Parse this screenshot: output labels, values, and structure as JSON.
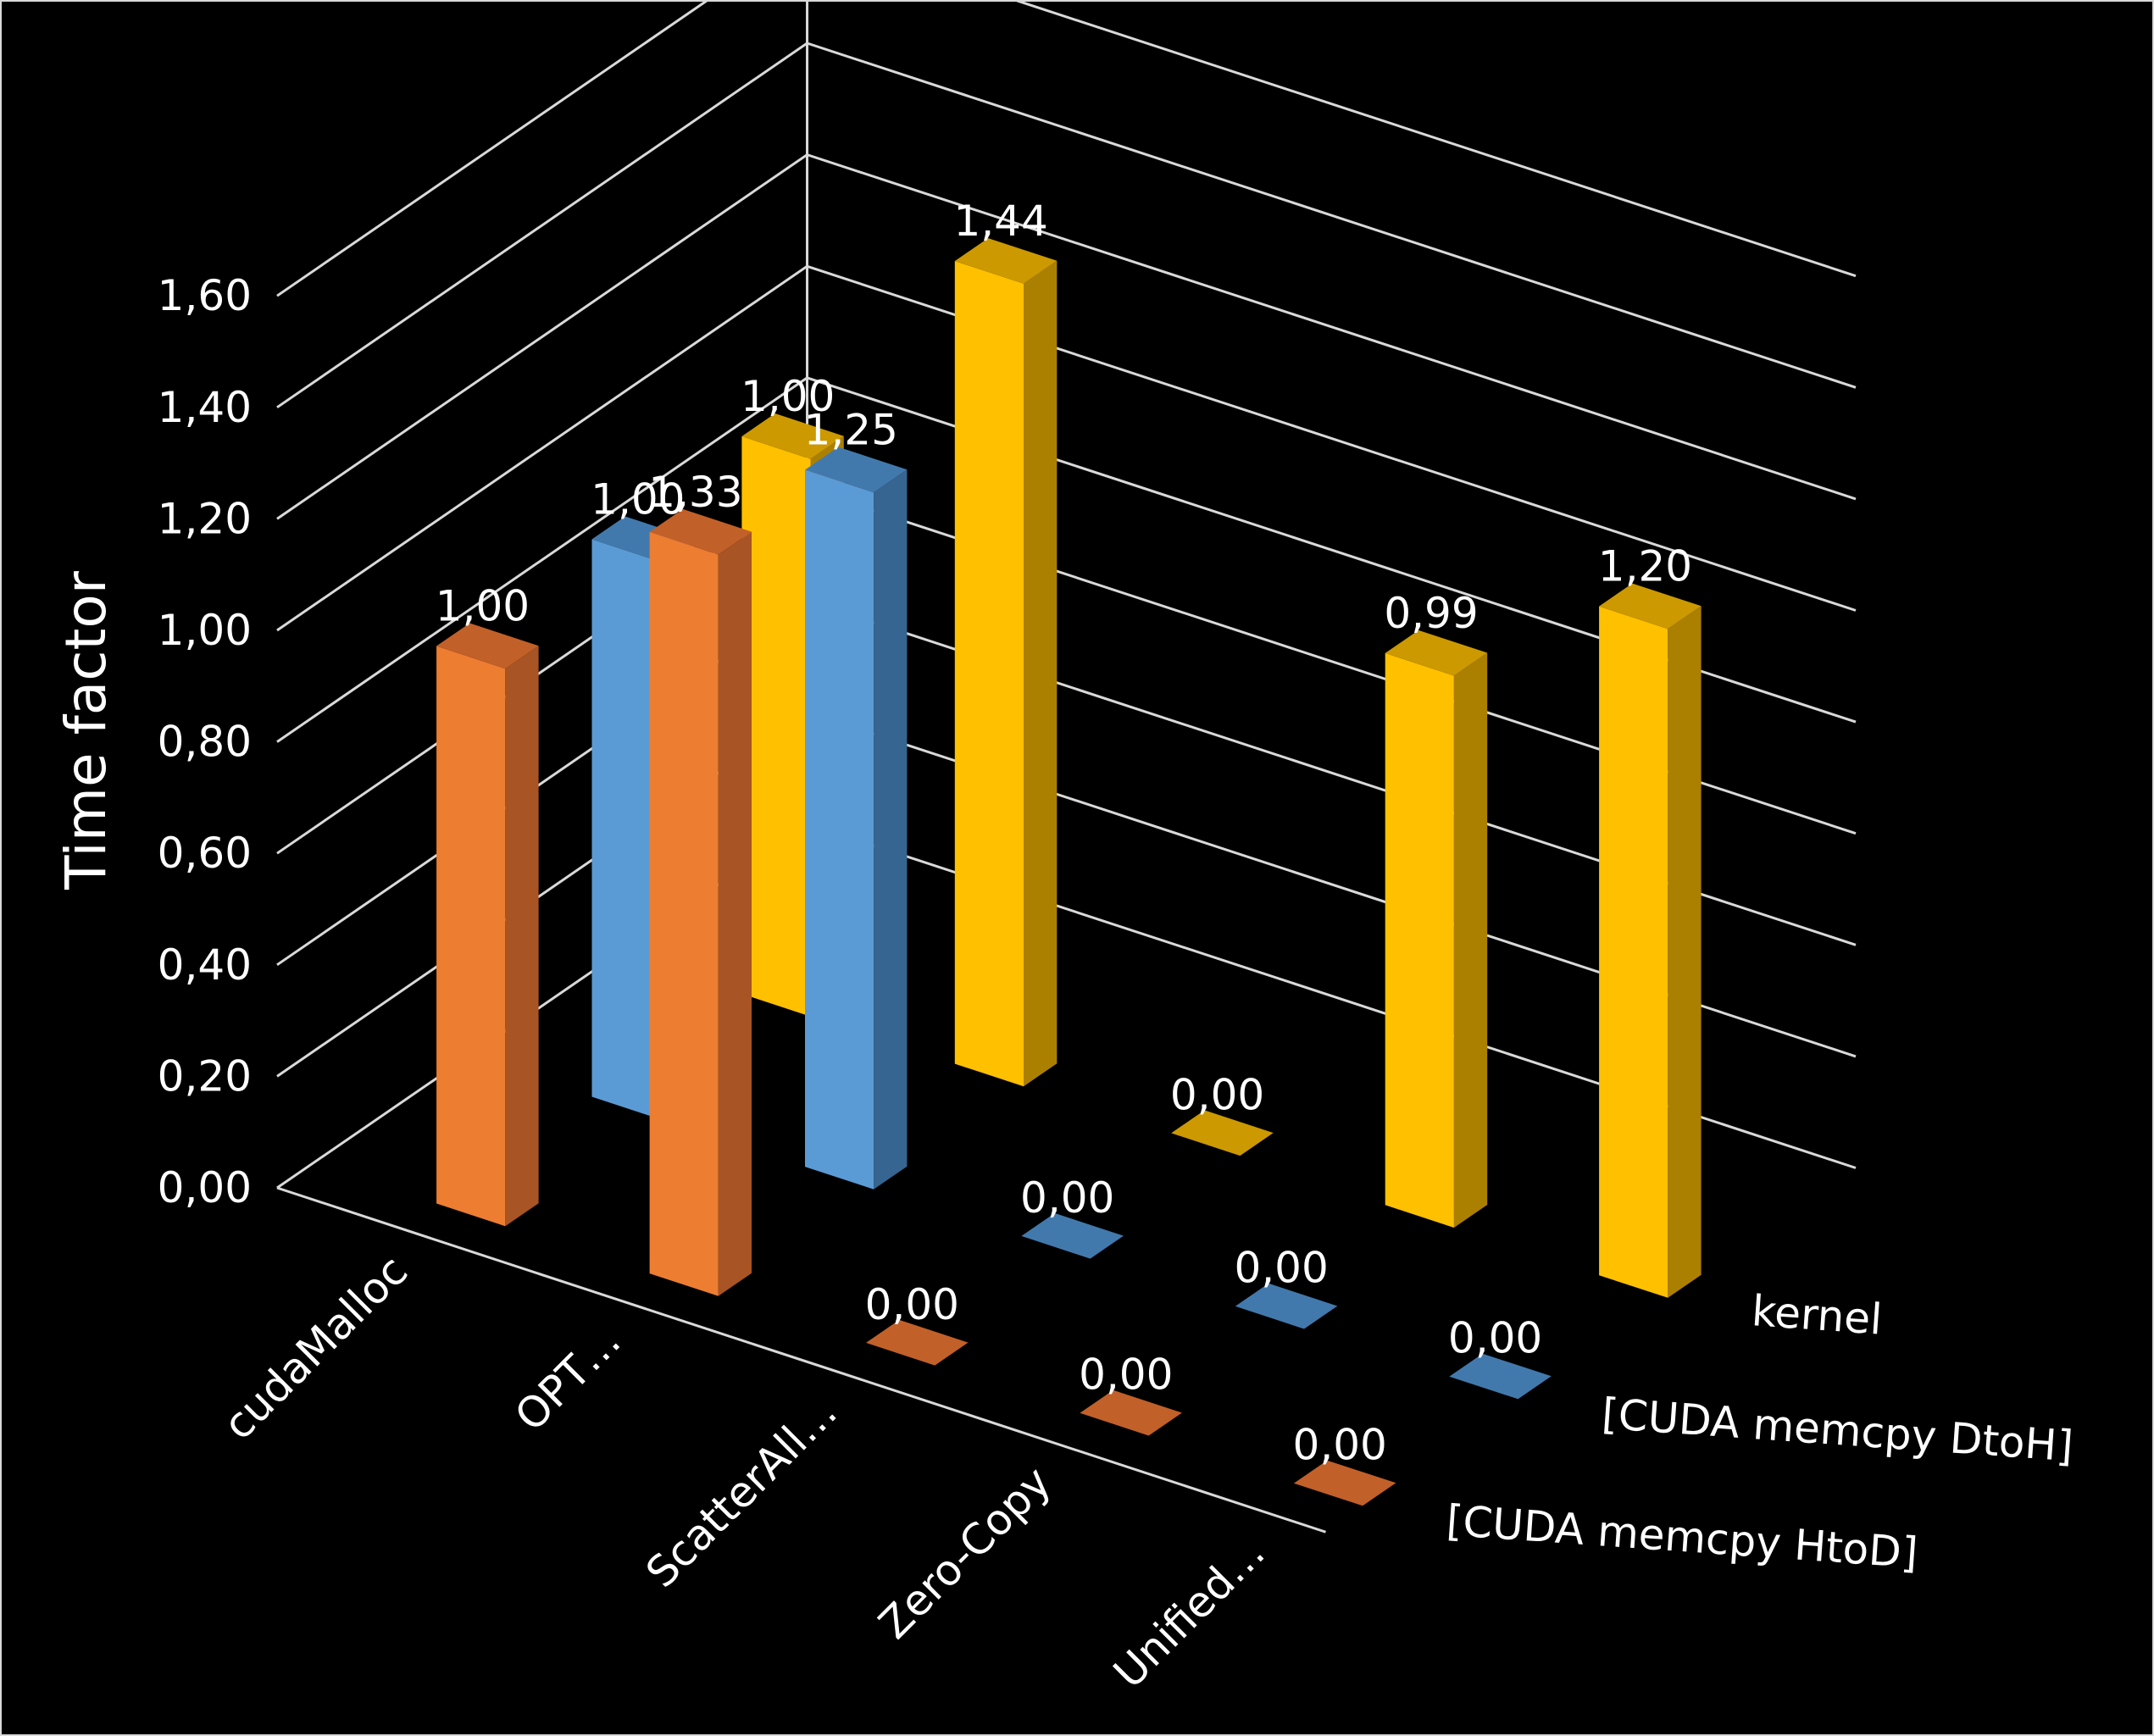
{
  "chart_data": {
    "type": "bar",
    "variant": "3d-column",
    "ylabel": "Time factor",
    "ylim": [
      0,
      1.6
    ],
    "yticks": [
      "0,00",
      "0,20",
      "0,40",
      "0,60",
      "0,80",
      "1,00",
      "1,20",
      "1,40",
      "1,60"
    ],
    "categories": [
      "cudaMalloc",
      "OPT…",
      "ScatterAll…",
      "Zero-Copy",
      "Unified…"
    ],
    "series": [
      {
        "name": "[CUDA memcpy HtoD]",
        "values": [
          1.0,
          1.33,
          0.0,
          0.0,
          0.0
        ],
        "labels": [
          "1,00",
          "1,33",
          "0,00",
          "0,00",
          "0,00"
        ]
      },
      {
        "name": "[CUDA memcpy DtoH]",
        "values": [
          1.0,
          1.25,
          0.0,
          0.0,
          0.0
        ],
        "labels": [
          "1,00",
          "1,25",
          "0,00",
          "0,00",
          "0,00"
        ]
      },
      {
        "name": "kernel",
        "values": [
          1.0,
          1.44,
          0.0,
          0.99,
          1.2
        ],
        "labels": [
          "1,00",
          "1,44",
          "0,00",
          "0,99",
          "1,20"
        ]
      }
    ],
    "colors": {
      "HtoD": {
        "front": "#ed7d31",
        "side": "#a85424",
        "top": "#c26029"
      },
      "DtoH": {
        "front": "#5b9bd5",
        "side": "#366591",
        "top": "#4279ad"
      },
      "kernel": {
        "front": "#ffc000",
        "side": "#ab8000",
        "top": "#cc9900"
      }
    },
    "grid": true,
    "legend": "series-axis-right"
  }
}
